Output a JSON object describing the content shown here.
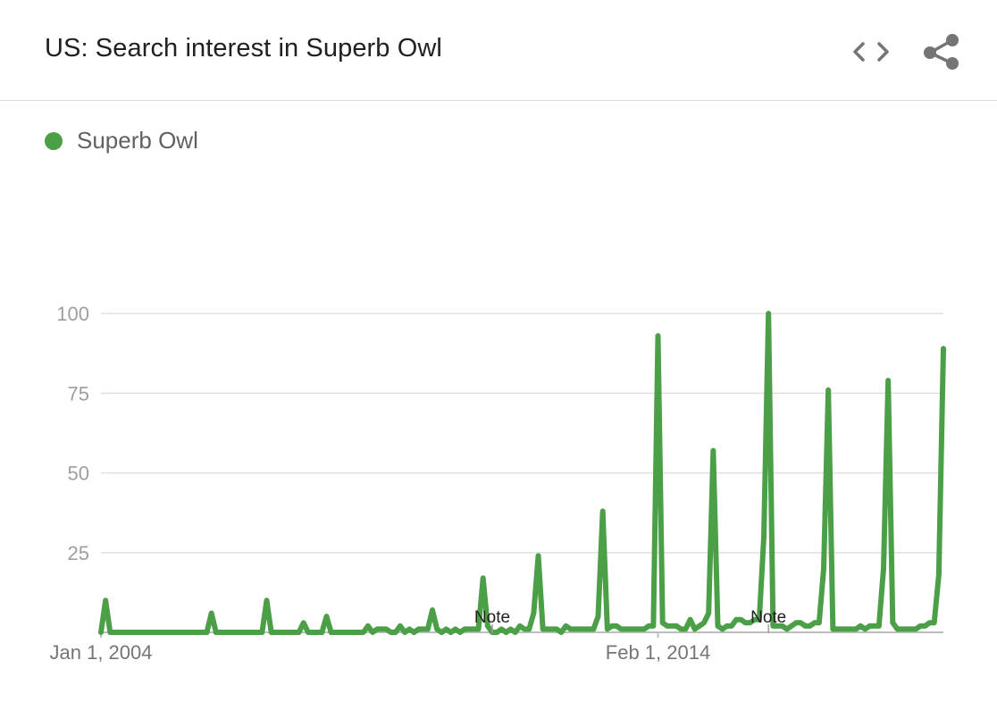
{
  "header": {
    "title": "US: Search interest in Superb Owl",
    "embed_icon": "code-brackets-icon",
    "share_icon": "share-icon"
  },
  "legend": {
    "items": [
      {
        "label": "Superb Owl",
        "color": "#4a9f47"
      }
    ]
  },
  "colors": {
    "series": "#4a9f47",
    "grid": "#e0e0e0",
    "axis_text": "#9e9e9e",
    "date_text": "#757575"
  },
  "chart_data": {
    "type": "line",
    "title": "US: Search interest in Superb Owl",
    "xlabel": "",
    "ylabel": "",
    "ylim": [
      0,
      100
    ],
    "yticks": [
      100,
      75,
      50,
      25
    ],
    "xtick_labels": [
      {
        "label": "Jan 1, 2004",
        "month_index": 0
      },
      {
        "label": "Feb 1, 2014",
        "month_index": 121
      }
    ],
    "x_start": "2004-01",
    "x_step": "1 month",
    "grid": true,
    "legend": "top-left",
    "notes": [
      {
        "label": "Note",
        "month_index": 85
      },
      {
        "label": "Note",
        "month_index": 145
      }
    ],
    "series": [
      {
        "name": "Superb Owl",
        "values": [
          0,
          10,
          0,
          0,
          0,
          0,
          0,
          0,
          0,
          0,
          0,
          0,
          0,
          0,
          0,
          0,
          0,
          0,
          0,
          0,
          0,
          0,
          0,
          0,
          6,
          0,
          0,
          0,
          0,
          0,
          0,
          0,
          0,
          0,
          0,
          0,
          10,
          0,
          0,
          0,
          0,
          0,
          0,
          0,
          3,
          0,
          0,
          0,
          0,
          5,
          0,
          0,
          0,
          0,
          0,
          0,
          0,
          0,
          2,
          0,
          1,
          1,
          1,
          0,
          0,
          2,
          0,
          1,
          0,
          1,
          1,
          1,
          7,
          1,
          0,
          1,
          0,
          1,
          0,
          1,
          1,
          1,
          1,
          17,
          2,
          0,
          0,
          1,
          0,
          1,
          0,
          2,
          1,
          1,
          6,
          24,
          1,
          1,
          1,
          1,
          0,
          2,
          1,
          1,
          1,
          1,
          1,
          1,
          5,
          38,
          1,
          2,
          2,
          1,
          1,
          1,
          1,
          1,
          1,
          2,
          2,
          93,
          3,
          2,
          2,
          2,
          1,
          1,
          4,
          1,
          2,
          3,
          6,
          57,
          2,
          1,
          2,
          2,
          4,
          4,
          3,
          3,
          4,
          4,
          30,
          100,
          2,
          2,
          2,
          1,
          2,
          3,
          3,
          2,
          2,
          3,
          3,
          20,
          76,
          1,
          1,
          1,
          1,
          1,
          1,
          2,
          1,
          2,
          2,
          2,
          20,
          79,
          3,
          1,
          1,
          1,
          1,
          1,
          2,
          2,
          3,
          3,
          18,
          89
        ]
      }
    ]
  }
}
